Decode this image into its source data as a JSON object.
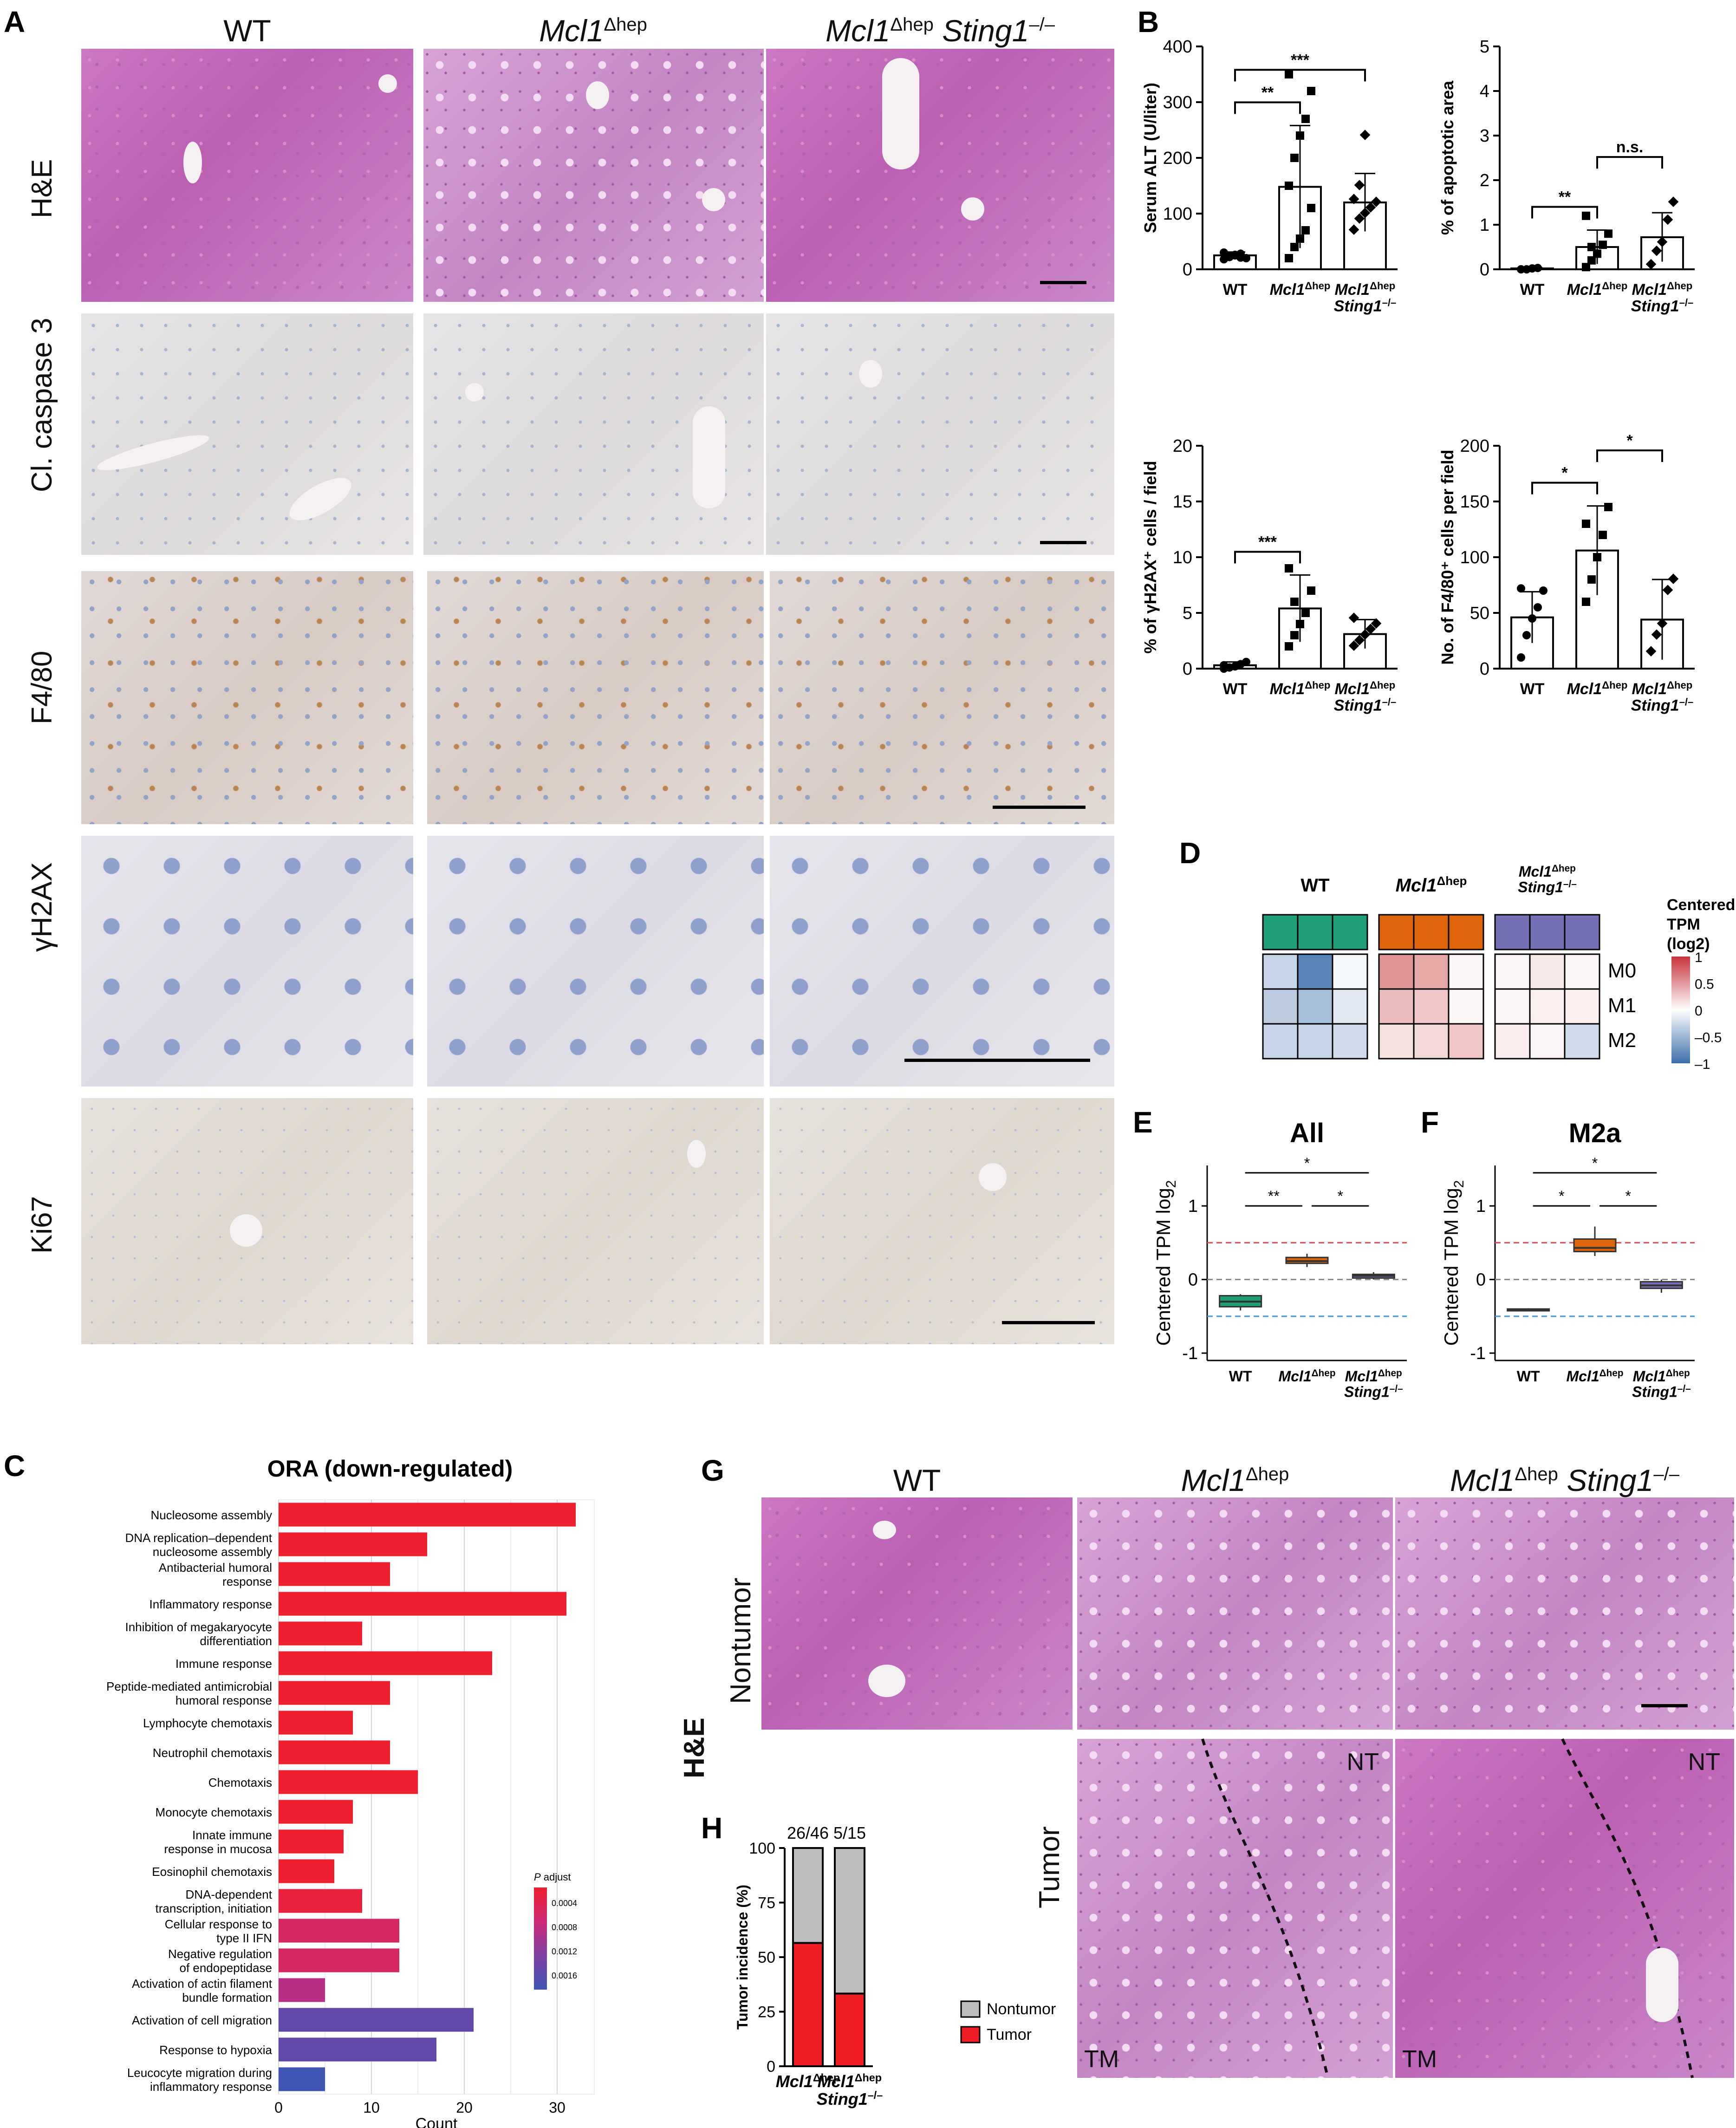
{
  "panels": {
    "A": {
      "label": "A",
      "columns": [
        "WT",
        "Mcl1",
        "Mcl1"
      ],
      "column_superscripts": [
        "",
        "Δhep",
        "Δhep"
      ],
      "column_suffix": [
        "",
        "",
        "Sting1"
      ],
      "column_suffix_superscript": [
        "",
        "",
        "–/–"
      ],
      "rows": [
        "H&E",
        "Cl. caspase 3",
        "F4/80",
        "γH2AX",
        "Ki67"
      ]
    },
    "B": {
      "label": "B"
    },
    "C": {
      "label": "C"
    },
    "D": {
      "label": "D"
    },
    "E": {
      "label": "E"
    },
    "F": {
      "label": "F"
    },
    "G": {
      "label": "G",
      "columns": [
        "WT",
        "Mcl1",
        "Mcl1"
      ],
      "stain": "H&E",
      "rows": [
        "Nontumor",
        "Tumor"
      ],
      "annotations": [
        "NT",
        "NT",
        "TM",
        "TM"
      ]
    },
    "H": {
      "label": "H"
    }
  },
  "chart_data": [
    {
      "id": "B1",
      "type": "bar",
      "ylabel": "Serum ALT (U/liter)",
      "categories": [
        "WT",
        "Mcl1Δhep",
        "Mcl1Δhep Sting1–/–"
      ],
      "values": [
        25,
        148,
        120
      ],
      "errors": [
        6,
        110,
        52
      ],
      "points": [
        [
          18,
          22,
          25,
          28,
          20,
          30,
          24,
          26,
          21
        ],
        [
          20,
          40,
          55,
          70,
          110,
          150,
          200,
          240,
          270,
          320,
          350
        ],
        [
          70,
          90,
          100,
          110,
          120,
          125,
          150,
          240
        ]
      ],
      "ylim": [
        0,
        400
      ],
      "yticks": [
        0,
        100,
        200,
        300,
        400
      ],
      "significance": [
        {
          "from": 0,
          "to": 1,
          "label": "**"
        },
        {
          "from": 0,
          "to": 2,
          "label": "***"
        }
      ]
    },
    {
      "id": "B2",
      "type": "bar",
      "ylabel": "% of apoptotic area",
      "categories": [
        "WT",
        "Mcl1Δhep",
        "Mcl1Δhep Sting1–/–"
      ],
      "values": [
        0.02,
        0.5,
        0.72
      ],
      "errors": [
        0.02,
        0.38,
        0.55
      ],
      "points": [
        [
          0,
          0,
          0.02,
          0.03
        ],
        [
          0.05,
          0.2,
          0.35,
          0.55,
          0.8,
          1.2,
          0.5
        ],
        [
          0.1,
          0.4,
          0.6,
          1.1,
          1.5
        ]
      ],
      "ylim": [
        0,
        5
      ],
      "yticks": [
        0,
        1,
        2,
        3,
        4,
        5
      ],
      "significance": [
        {
          "from": 0,
          "to": 1,
          "label": "**"
        },
        {
          "from": 1,
          "to": 2,
          "label": "n.s."
        }
      ]
    },
    {
      "id": "B3",
      "type": "bar",
      "ylabel": "% of γH2AX⁺ cells / field",
      "categories": [
        "WT",
        "Mcl1Δhep",
        "Mcl1Δhep Sting1–/–"
      ],
      "values": [
        0.3,
        5.4,
        3.1
      ],
      "errors": [
        0.3,
        3.0,
        1.3
      ],
      "points": [
        [
          0,
          0.1,
          0.2,
          0.4,
          0.6,
          0.3
        ],
        [
          2,
          3,
          4,
          5,
          7,
          9,
          6
        ],
        [
          2,
          2.5,
          3,
          3.5,
          4,
          4.5
        ]
      ],
      "ylim": [
        0,
        20
      ],
      "yticks": [
        0,
        5,
        10,
        15,
        20
      ],
      "significance": [
        {
          "from": 0,
          "to": 1,
          "label": "***"
        }
      ]
    },
    {
      "id": "B4",
      "type": "bar",
      "ylabel": "No. of F4/80⁺ cells per field",
      "categories": [
        "WT",
        "Mcl1Δhep",
        "Mcl1Δhep Sting1–/–"
      ],
      "values": [
        46,
        106,
        44
      ],
      "errors": [
        23,
        40,
        36
      ],
      "points": [
        [
          10,
          30,
          45,
          55,
          70,
          72
        ],
        [
          60,
          80,
          100,
          120,
          145,
          130
        ],
        [
          15,
          30,
          40,
          70,
          80
        ]
      ],
      "ylim": [
        0,
        200
      ],
      "yticks": [
        0,
        50,
        100,
        150,
        200
      ],
      "significance": [
        {
          "from": 0,
          "to": 1,
          "label": "*"
        },
        {
          "from": 1,
          "to": 2,
          "label": "*"
        }
      ]
    },
    {
      "id": "C",
      "type": "bar",
      "title": "ORA (down-regulated)",
      "xlabel": "Count",
      "orientation": "horizontal",
      "categories": [
        "Nucleosome assembly",
        "DNA replication–dependent nucleosome assembly",
        "Antibacterial humoral response",
        "Inflammatory response",
        "Inhibition of megakaryocyte differentiation",
        "Immune response",
        "Peptide-mediated antimicrobial humoral response",
        "Lymphocyte chemotaxis",
        "Neutrophil chemotaxis",
        "Chemotaxis",
        "Monocyte chemotaxis",
        "Innate immune response in mucosa",
        "Eosinophil chemotaxis",
        "DNA-dependent transcription, initiation",
        "Cellular response to type II IFN",
        "Negative regulation of endopeptidase",
        "Activation of actin filament bundle formation",
        "Activation of cell migration",
        "Response to hypoxia",
        "Leucocyte migration during inflammatory response"
      ],
      "category_lines": [
        [
          "Nucleosome assembly"
        ],
        [
          "DNA replication–dependent",
          "nucleosome assembly"
        ],
        [
          "Antibacterial humoral",
          "response"
        ],
        [
          "Inflammatory response"
        ],
        [
          "Inhibition of megakaryocyte",
          "differentiation"
        ],
        [
          "Immune response"
        ],
        [
          "Peptide-mediated antimicrobial",
          "humoral response"
        ],
        [
          "Lymphocyte chemotaxis"
        ],
        [
          "Neutrophil chemotaxis"
        ],
        [
          "Chemotaxis"
        ],
        [
          "Monocyte chemotaxis"
        ],
        [
          "Innate immune",
          "response in mucosa"
        ],
        [
          "Eosinophil chemotaxis"
        ],
        [
          "DNA-dependent",
          "transcription, initiation"
        ],
        [
          "Cellular response to",
          "type II IFN"
        ],
        [
          "Negative regulation",
          "of endopeptidase"
        ],
        [
          "Activation of actin filament",
          "bundle formation"
        ],
        [
          "Activation of cell migration"
        ],
        [
          "Response to hypoxia"
        ],
        [
          "Leucocyte migration during",
          "inflammatory response"
        ]
      ],
      "values": [
        32,
        16,
        12,
        31,
        9,
        23,
        12,
        8,
        12,
        15,
        8,
        7,
        6,
        9,
        13,
        13,
        5,
        21,
        17,
        5
      ],
      "p_adjust": [
        0.0001,
        0.0001,
        0.0001,
        0.0001,
        0.0001,
        0.0001,
        0.0001,
        0.0001,
        0.0001,
        0.0001,
        0.0001,
        0.0001,
        0.0001,
        0.0002,
        0.0005,
        0.0005,
        0.0008,
        0.0014,
        0.0014,
        0.0017
      ],
      "xlim": [
        0,
        32
      ],
      "xticks": [
        0,
        10,
        20,
        30
      ],
      "legend": {
        "title": "P adjust",
        "ticks": [
          "0.0004",
          "0.0008",
          "0.0012",
          "0.0016"
        ],
        "placement": "bottom-right"
      },
      "colors": {
        "low": "#ee2030",
        "mid": "#cc2a7a",
        "high": "#3e55b3"
      }
    },
    {
      "id": "D",
      "type": "heatmap",
      "groups": [
        "WT",
        "Mcl1Δhep",
        "Mcl1Δhep Sting1–/–"
      ],
      "group_colors": [
        "#1f9e78",
        "#de650b",
        "#7571b6"
      ],
      "rows": [
        "M0",
        "M1",
        "M2"
      ],
      "values": [
        [
          -0.3,
          -0.85,
          -0.05,
          0.55,
          0.45,
          0.05,
          0.05,
          0.12,
          0.05
        ],
        [
          -0.35,
          -0.45,
          -0.15,
          0.35,
          0.3,
          0.05,
          0.05,
          0.08,
          0.08
        ],
        [
          -0.3,
          -0.3,
          -0.25,
          0.15,
          0.2,
          0.3,
          0.1,
          0.05,
          -0.25
        ]
      ],
      "legend": {
        "title": "Centered TPM (log2)",
        "ticks": [
          "1",
          "0.5",
          "0",
          "–0.5",
          "–1"
        ],
        "range": [
          -1,
          1
        ]
      }
    },
    {
      "id": "E",
      "type": "box",
      "title": "All",
      "ylabel": "Centered TPM log2",
      "categories": [
        "WT",
        "Mcl1Δhep",
        "Mcl1Δhep Sting1–/–"
      ],
      "boxes": [
        [
          -0.42,
          -0.37,
          -0.3,
          -0.22,
          -0.2
        ],
        [
          0.17,
          0.22,
          0.25,
          0.3,
          0.35
        ],
        [
          0.0,
          0.02,
          0.05,
          0.07,
          0.1
        ]
      ],
      "box_colors": [
        "#1f9e78",
        "#de650b",
        "#7571b6"
      ],
      "ylim": [
        -1.1,
        1.55
      ],
      "yticks": [
        -1,
        0,
        1
      ],
      "reference_lines": [
        {
          "y": 0.5,
          "color": "#e05050"
        },
        {
          "y": 0,
          "color": "#888888"
        },
        {
          "y": -0.5,
          "color": "#3d9be0"
        }
      ],
      "significance": [
        {
          "from": 0,
          "to": 1,
          "label": "**"
        },
        {
          "from": 1,
          "to": 2,
          "label": "*"
        },
        {
          "from": 0,
          "to": 2,
          "label": "*"
        }
      ]
    },
    {
      "id": "F",
      "type": "box",
      "title": "M2a",
      "ylabel": "Centered TPM log2",
      "categories": [
        "WT",
        "Mcl1Δhep",
        "Mcl1Δhep Sting1–/–"
      ],
      "boxes": [
        [
          -0.43,
          -0.42,
          -0.41,
          -0.4,
          -0.39
        ],
        [
          0.32,
          0.38,
          0.43,
          0.55,
          0.72
        ],
        [
          -0.18,
          -0.12,
          -0.08,
          -0.03,
          0.0
        ]
      ],
      "box_colors": [
        "#1f9e78",
        "#de650b",
        "#7571b6"
      ],
      "ylim": [
        -1.1,
        1.55
      ],
      "yticks": [
        -1,
        0,
        1
      ],
      "reference_lines": [
        {
          "y": 0.5,
          "color": "#e05050"
        },
        {
          "y": 0,
          "color": "#888888"
        },
        {
          "y": -0.5,
          "color": "#3d9be0"
        }
      ],
      "significance": [
        {
          "from": 0,
          "to": 1,
          "label": "*"
        },
        {
          "from": 1,
          "to": 2,
          "label": "*"
        },
        {
          "from": 0,
          "to": 2,
          "label": "*"
        }
      ]
    },
    {
      "id": "H",
      "type": "bar",
      "stacked": true,
      "ylabel": "Tumor incidence (%)",
      "categories": [
        "Mcl1Δhep",
        "Mcl1Δhep Sting1–/–"
      ],
      "top_labels": [
        "26/46",
        "5/15"
      ],
      "series": [
        {
          "name": "Tumor",
          "values": [
            56.5,
            33.3
          ],
          "color": "#ee1c24"
        },
        {
          "name": "Nontumor",
          "values": [
            43.5,
            66.7
          ],
          "color": "#bdbdbd"
        }
      ],
      "ylim": [
        0,
        100
      ],
      "yticks": [
        0,
        25,
        50,
        75,
        100
      ],
      "legend_placement": "right"
    }
  ]
}
